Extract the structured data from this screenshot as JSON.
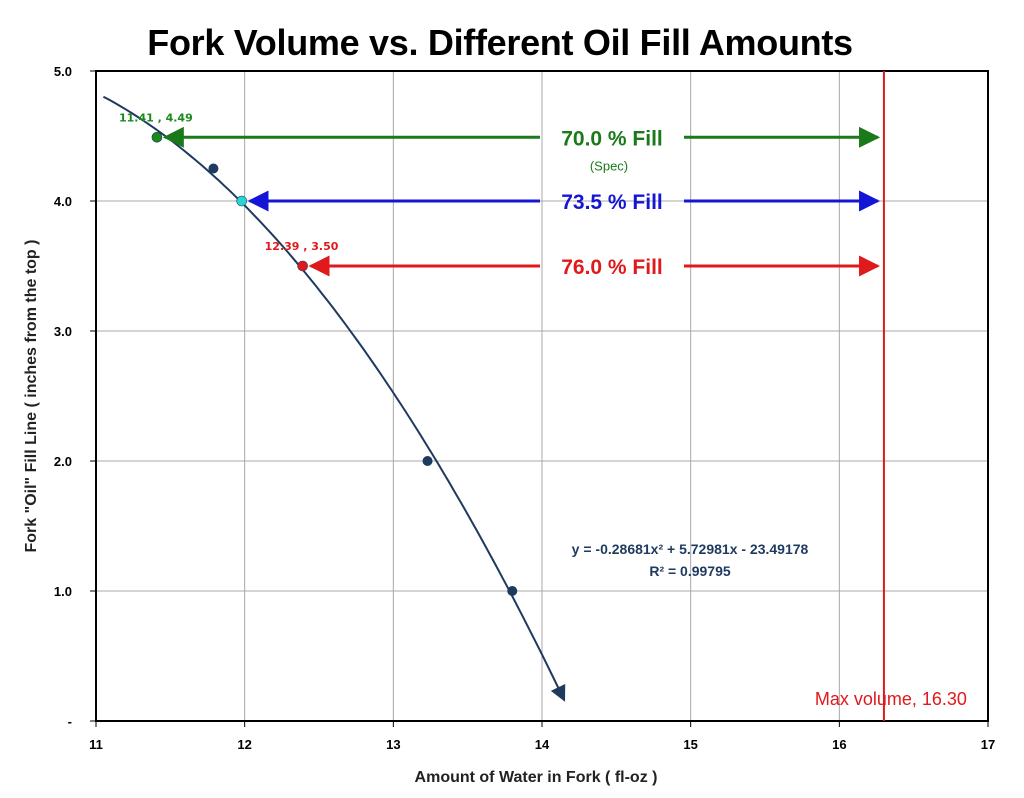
{
  "chart_data": {
    "type": "scatter",
    "title": "Fork Volume vs. Different Oil Fill Amounts",
    "xlabel": "Amount of Water in Fork  ( fl-oz )",
    "ylabel": "Fork \"Oil\" Fill Line  ( inches from the top )",
    "xlim": [
      11,
      17
    ],
    "ylim": [
      0,
      5
    ],
    "x_ticks": [
      "11",
      "12",
      "13",
      "14",
      "15",
      "16",
      "17"
    ],
    "y_ticks": [
      "-",
      "1.0",
      "2.0",
      "3.0",
      "4.0",
      "5.0"
    ],
    "grid": true,
    "series": [
      {
        "color": "#1f3a5f",
        "points": [
          {
            "x": 11.79,
            "y": 4.25
          },
          {
            "x": 13.23,
            "y": 2.0
          },
          {
            "x": 13.8,
            "y": 1.0
          }
        ]
      }
    ],
    "trendline": {
      "type": "polynomial",
      "coefficients": [
        -0.28681,
        5.72981,
        -23.49178
      ],
      "x_range": [
        11.05,
        14.15
      ],
      "color": "#1f3a5f",
      "equation": "y = -0.28681x² + 5.72981x - 23.49178",
      "r_squared": "R² = 0.99795"
    },
    "highlight_points": [
      {
        "x": 11.41,
        "y": 4.49,
        "color": "#1a8a1a",
        "label_x": "11.41",
        "label_y": "4.49"
      },
      {
        "x": 11.98,
        "y": 4.0,
        "color": "#2ad4d4"
      },
      {
        "x": 12.39,
        "y": 3.5,
        "color": "#e0191c",
        "label_x": "12.39",
        "label_y": "3.50"
      }
    ],
    "fill_arrows": [
      {
        "label": "70.0 % Fill",
        "note": "(Spec)",
        "y": 4.49,
        "x_start": 11.41,
        "x_end": 16.3,
        "color": "#1a7a1a"
      },
      {
        "label": "73.5 % Fill",
        "y": 4.0,
        "x_start": 11.98,
        "x_end": 16.3,
        "color": "#1515d6"
      },
      {
        "label": "76.0 % Fill",
        "y": 3.5,
        "x_start": 12.39,
        "x_end": 16.3,
        "color": "#e0191c"
      }
    ],
    "max_volume": {
      "x": 16.3,
      "label": "Max volume,",
      "value": "16.30",
      "color": "#e0191c"
    }
  }
}
